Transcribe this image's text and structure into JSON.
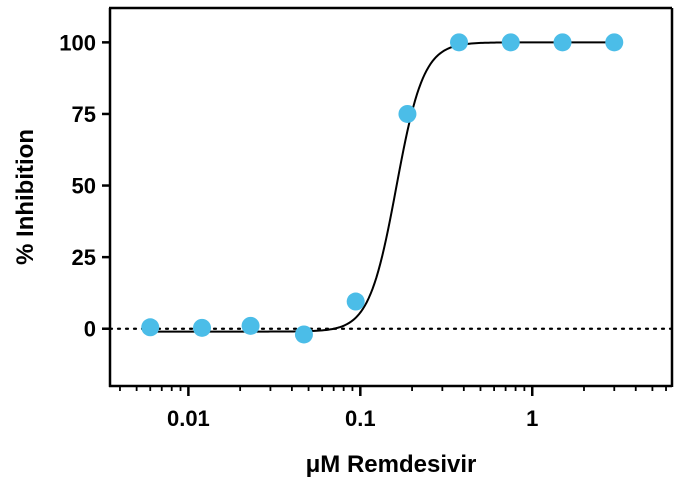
{
  "chart_data": {
    "type": "scatter",
    "xlabel": "μM Remdesivir",
    "ylabel": "% Inhibition",
    "x_scale": "log",
    "xlim": [
      0.0035,
      6.5
    ],
    "ylim": [
      -20,
      112
    ],
    "x_ticks": [
      {
        "value": 0.01,
        "label": "0.01"
      },
      {
        "value": 0.1,
        "label": "0.1"
      },
      {
        "value": 1,
        "label": "1"
      }
    ],
    "y_ticks": [
      {
        "value": 0,
        "label": "0"
      },
      {
        "value": 25,
        "label": "25"
      },
      {
        "value": 50,
        "label": "50"
      },
      {
        "value": 75,
        "label": "75"
      },
      {
        "value": 100,
        "label": "100"
      }
    ],
    "reference_line": {
      "y": 0,
      "style": "dotted"
    },
    "series": [
      {
        "color": "#4bbde8",
        "x": [
          0.006,
          0.012,
          0.023,
          0.047,
          0.094,
          0.188,
          0.375,
          0.75,
          1.5,
          3.0
        ],
        "y": [
          0.5,
          0.3,
          1.0,
          -2.0,
          9.5,
          75.0,
          100.0,
          100.0,
          100.0,
          100.0
        ]
      }
    ],
    "fit_curve": {
      "color": "#000000",
      "model": "sigmoid",
      "bottom": -1,
      "top": 100,
      "ic50": 0.162,
      "hill": 5.5
    }
  }
}
